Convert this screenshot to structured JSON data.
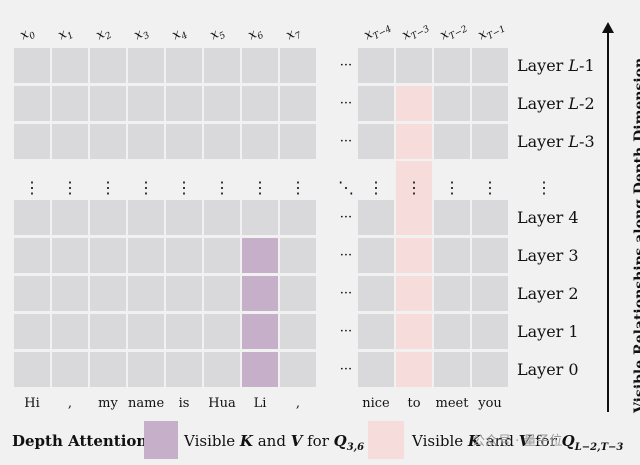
{
  "columns": [
    "x",
    "x",
    "x",
    "x",
    "x",
    "x",
    "x",
    "x",
    "x",
    "x",
    "x",
    "x"
  ],
  "column_subscripts": [
    "0",
    "1",
    "2",
    "3",
    "4",
    "5",
    "6",
    "7",
    "T−4",
    "T−3",
    "T−2",
    "T−1"
  ],
  "tokens": [
    "Hi",
    ",",
    "my",
    "name",
    "is",
    "Hua",
    "Li",
    ",",
    "nice",
    "to",
    "meet",
    "you"
  ],
  "layers": [
    {
      "prefix": "Layer ",
      "var": "L",
      "suffix": "-1"
    },
    {
      "prefix": "Layer ",
      "var": "L",
      "suffix": "-2"
    },
    {
      "prefix": "Layer ",
      "var": "L",
      "suffix": "-3"
    },
    {
      "prefix": "Layer 4",
      "var": "",
      "suffix": ""
    },
    {
      "prefix": "Layer 3",
      "var": "",
      "suffix": ""
    },
    {
      "prefix": "Layer 2",
      "var": "",
      "suffix": ""
    },
    {
      "prefix": "Layer 1",
      "var": "",
      "suffix": ""
    },
    {
      "prefix": "Layer 0",
      "var": "",
      "suffix": ""
    }
  ],
  "ellipsis_h": "···",
  "ellipsis_v": "⋮",
  "ellipsis_diag": "⋱",
  "axis_title": "Visible Relationships along Depth Dimension",
  "legend": {
    "title": "Depth Attention",
    "item1": {
      "pre": "Visible ",
      "k": "K",
      "mid": " and ",
      "v": "V",
      "post": " for ",
      "q": "Q",
      "sub": "3,6"
    },
    "item2": {
      "pre": "Visible ",
      "k": "K",
      "mid": " and ",
      "v": "V",
      "post": " for ",
      "q": "Q",
      "sub": "L−2,T−3"
    }
  },
  "colors": {
    "cell": "#d9d9db",
    "purple": "#c6afc9",
    "pink": "#f6dcdb"
  },
  "highlights": {
    "purple_token_index": 6,
    "purple_layers": [
      0,
      1,
      2,
      3
    ],
    "pink_token_index": 9,
    "pink_from_layer": "L-2"
  },
  "watermark": "公众号 · 量子位"
}
